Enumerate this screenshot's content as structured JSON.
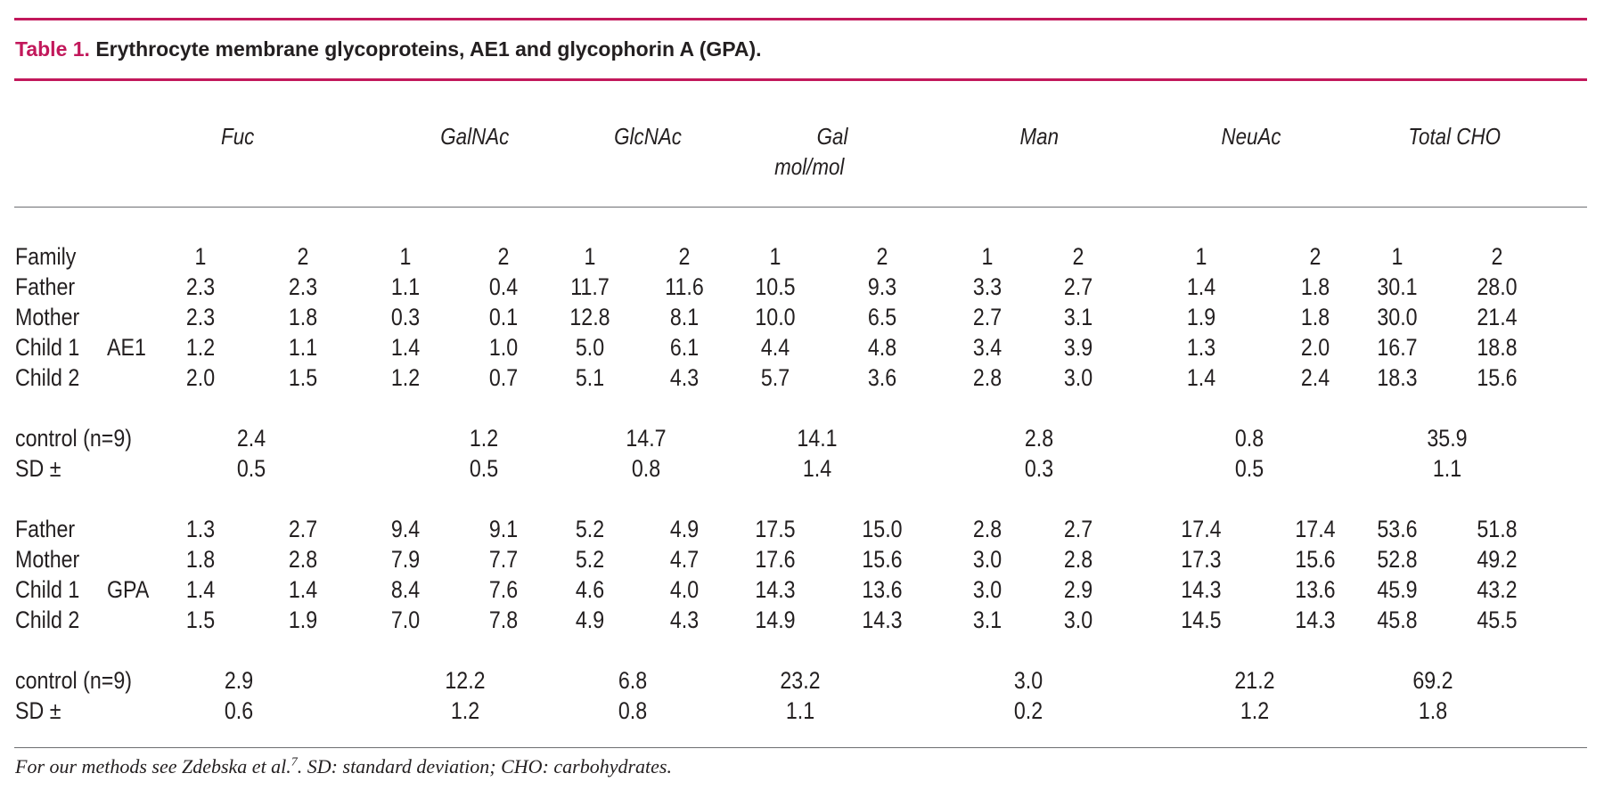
{
  "title": {
    "number": "Table 1.",
    "text": "Erythrocyte membrane glycoproteins, AE1 and glycophorin A (GPA)."
  },
  "columns": [
    "Fuc",
    "GalNAc",
    "GlcNAc",
    "Gal",
    "Man",
    "NeuAc",
    "Total CHO"
  ],
  "unit": "mol/mol",
  "family_row": {
    "label": "Family",
    "values": [
      "1",
      "2",
      "1",
      "2",
      "1",
      "2",
      "1",
      "2",
      "1",
      "2",
      "1",
      "2",
      "1",
      "2"
    ]
  },
  "ae1": {
    "tag": "AE1",
    "rows": [
      {
        "label": "Father",
        "values": [
          "2.3",
          "2.3",
          "1.1",
          "0.4",
          "11.7",
          "11.6",
          "10.5",
          "9.3",
          "3.3",
          "2.7",
          "1.4",
          "1.8",
          "30.1",
          "28.0"
        ]
      },
      {
        "label": "Mother",
        "values": [
          "2.3",
          "1.8",
          "0.3",
          "0.1",
          "12.8",
          "8.1",
          "10.0",
          "6.5",
          "2.7",
          "3.1",
          "1.9",
          "1.8",
          "30.0",
          "21.4"
        ]
      },
      {
        "label": "Child 1",
        "values": [
          "1.2",
          "1.1",
          "1.4",
          "1.0",
          "5.0",
          "6.1",
          "4.4",
          "4.8",
          "3.4",
          "3.9",
          "1.3",
          "2.0",
          "16.7",
          "18.8"
        ]
      },
      {
        "label": "Child 2",
        "values": [
          "2.0",
          "1.5",
          "1.2",
          "0.7",
          "5.1",
          "4.3",
          "5.7",
          "3.6",
          "2.8",
          "3.0",
          "1.4",
          "2.4",
          "18.3",
          "15.6"
        ]
      }
    ],
    "control": {
      "label": "control (n=9)",
      "values": [
        "2.4",
        "1.2",
        "14.7",
        "14.1",
        "2.8",
        "0.8",
        "35.9"
      ]
    },
    "sd": {
      "label": "SD ±",
      "values": [
        "0.5",
        "0.5",
        "0.8",
        "1.4",
        "0.3",
        "0.5",
        "1.1"
      ]
    }
  },
  "gpa": {
    "tag": "GPA",
    "rows": [
      {
        "label": "Father",
        "values": [
          "1.3",
          "2.7",
          "9.4",
          "9.1",
          "5.2",
          "4.9",
          "17.5",
          "15.0",
          "2.8",
          "2.7",
          "17.4",
          "17.4",
          "53.6",
          "51.8"
        ]
      },
      {
        "label": "Mother",
        "values": [
          "1.8",
          "2.8",
          "7.9",
          "7.7",
          "5.2",
          "4.7",
          "17.6",
          "15.6",
          "3.0",
          "2.8",
          "17.3",
          "15.6",
          "52.8",
          "49.2"
        ]
      },
      {
        "label": "Child 1",
        "values": [
          "1.4",
          "1.4",
          "8.4",
          "7.6",
          "4.6",
          "4.0",
          "14.3",
          "13.6",
          "3.0",
          "2.9",
          "14.3",
          "13.6",
          "45.9",
          "43.2"
        ]
      },
      {
        "label": "Child 2",
        "values": [
          "1.5",
          "1.9",
          "7.0",
          "7.8",
          "4.9",
          "4.3",
          "14.9",
          "14.3",
          "3.1",
          "3.0",
          "14.5",
          "14.3",
          "45.8",
          "45.5"
        ]
      }
    ],
    "control": {
      "label": "control (n=9)",
      "values": [
        "2.9",
        "12.2",
        "6.8",
        "23.2",
        "3.0",
        "21.2",
        "69.2"
      ]
    },
    "sd": {
      "label": "SD ±",
      "values": [
        "0.6",
        "1.2",
        "0.8",
        "1.1",
        "0.2",
        "1.2",
        "1.8"
      ]
    }
  },
  "footnote": {
    "before": "For our methods see Zdebska et al.",
    "ref": "7",
    "after": ". SD: standard deviation; CHO: carbohydrates."
  }
}
